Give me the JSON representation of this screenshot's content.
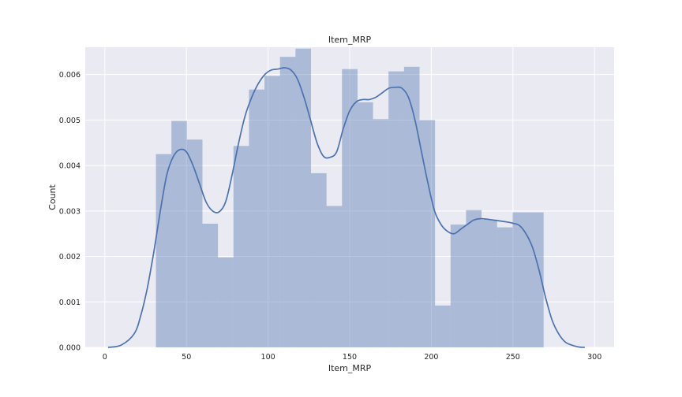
{
  "chart_data": {
    "type": "histogram",
    "title": "Item_MRP",
    "xlabel": "Item_MRP",
    "ylabel": "Count",
    "xlim": [
      -12,
      312
    ],
    "ylim": [
      0,
      0.0066
    ],
    "xticks": [
      0,
      50,
      100,
      150,
      200,
      250,
      300
    ],
    "xtick_labels": [
      "0",
      "50",
      "100",
      "150",
      "200",
      "250",
      "300"
    ],
    "yticks": [
      0.0,
      0.001,
      0.002,
      0.003,
      0.004,
      0.005,
      0.006
    ],
    "ytick_labels": [
      "0.000",
      "0.001",
      "0.002",
      "0.003",
      "0.004",
      "0.005",
      "0.006"
    ],
    "grid": true,
    "bin_edges": [
      31.3,
      40.8,
      50.3,
      59.8,
      69.3,
      78.8,
      88.3,
      97.8,
      107.3,
      116.8,
      126.3,
      135.8,
      145.3,
      154.8,
      164.3,
      173.8,
      183.3,
      192.8,
      202.3,
      211.8,
      221.3,
      230.8,
      240.3,
      249.8,
      259.3,
      268.8
    ],
    "bar_heights": [
      0.00425,
      0.00498,
      0.00457,
      0.00272,
      0.00198,
      0.00443,
      0.00567,
      0.00597,
      0.00639,
      0.00657,
      0.00383,
      0.00311,
      0.00612,
      0.00539,
      0.00502,
      0.00607,
      0.00617,
      0.005,
      0.00092,
      0.0027,
      0.00302,
      0.00281,
      0.00264,
      0.00297,
      0.00297
    ],
    "kde": {
      "x": [
        2,
        10,
        18,
        22,
        26,
        30,
        34,
        38,
        42,
        46,
        50,
        54,
        58,
        62,
        66,
        70,
        74,
        78,
        82,
        86,
        90,
        94,
        98,
        102,
        106,
        110,
        114,
        118,
        122,
        126,
        130,
        134,
        138,
        142,
        146,
        150,
        154,
        158,
        162,
        166,
        170,
        174,
        178,
        182,
        186,
        190,
        194,
        198,
        202,
        206,
        210,
        214,
        218,
        222,
        226,
        230,
        234,
        238,
        242,
        246,
        250,
        254,
        258,
        262,
        266,
        270,
        274,
        278,
        282,
        286,
        290,
        294
      ],
      "y": [
        0.0,
        5e-05,
        0.0003,
        0.0007,
        0.0013,
        0.0021,
        0.003,
        0.0038,
        0.0042,
        0.00435,
        0.0043,
        0.004,
        0.0036,
        0.0032,
        0.003,
        0.00298,
        0.0032,
        0.0038,
        0.0045,
        0.0051,
        0.0055,
        0.0058,
        0.006,
        0.0061,
        0.00612,
        0.00615,
        0.0061,
        0.0059,
        0.0055,
        0.005,
        0.0045,
        0.0042,
        0.00418,
        0.0043,
        0.0048,
        0.0052,
        0.0054,
        0.00545,
        0.00545,
        0.0055,
        0.0056,
        0.0057,
        0.00572,
        0.0057,
        0.0055,
        0.005,
        0.0043,
        0.0036,
        0.003,
        0.0027,
        0.00255,
        0.0025,
        0.0026,
        0.0027,
        0.0028,
        0.00283,
        0.00282,
        0.0028,
        0.00278,
        0.00276,
        0.00273,
        0.00268,
        0.0025,
        0.0022,
        0.0017,
        0.0011,
        0.0006,
        0.0003,
        0.00012,
        5e-05,
        1e-05,
        0.0
      ]
    },
    "colors": {
      "background": "#eaeaf2",
      "grid": "#ffffff",
      "bar_fill": "#4c72b0",
      "kde_line": "#4c72b0"
    }
  }
}
